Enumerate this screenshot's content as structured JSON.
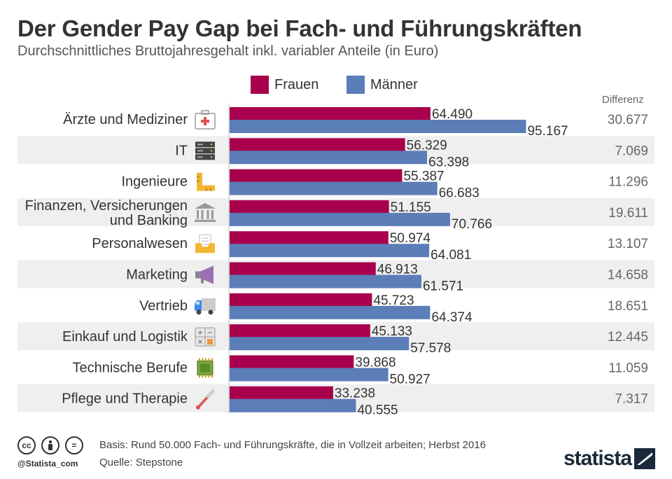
{
  "header": {
    "title": "Der Gender Pay Gap bei Fach- und Führungskräften",
    "subtitle": "Durchschnittliches Bruttojahresgehalt inkl. variabler Anteile (in Euro)"
  },
  "legend": {
    "frauen": "Frauen",
    "maenner": "Männer"
  },
  "colors": {
    "frauen": "#a8004c",
    "maenner": "#5b7db8",
    "row_band": "#efefef"
  },
  "diff_header": "Differenz",
  "chart_data": {
    "type": "bar",
    "orientation": "horizontal",
    "categories": [
      "Ärzte und Mediziner",
      "IT",
      "Ingenieure",
      "Finanzen, Versicherungen und Banking",
      "Personalwesen",
      "Marketing",
      "Vertrieb",
      "Einkauf und Logistik",
      "Technische Berufe",
      "Pflege und Therapie"
    ],
    "category_lines": [
      [
        "Ärzte und Mediziner"
      ],
      [
        "IT"
      ],
      [
        "Ingenieure"
      ],
      [
        "Finanzen, Versicherungen",
        "und Banking"
      ],
      [
        "Personalwesen"
      ],
      [
        "Marketing"
      ],
      [
        "Vertrieb"
      ],
      [
        "Einkauf und Logistik"
      ],
      [
        "Technische Berufe"
      ],
      [
        "Pflege und Therapie"
      ]
    ],
    "icons": [
      "medical-kit-icon",
      "server-icon",
      "ruler-icon",
      "bank-icon",
      "inbox-tray-icon",
      "megaphone-icon",
      "truck-icon",
      "calculator-icon",
      "microchip-icon",
      "thermometer-icon"
    ],
    "series": [
      {
        "name": "Frauen",
        "values": [
          64490,
          56329,
          55387,
          51155,
          50974,
          46913,
          45723,
          45133,
          39868,
          33238
        ],
        "labels": [
          "64.490",
          "56.329",
          "55.387",
          "51.155",
          "50.974",
          "46.913",
          "45.723",
          "45.133",
          "39.868",
          "33.238"
        ]
      },
      {
        "name": "Männer",
        "values": [
          95167,
          63398,
          66683,
          70766,
          64081,
          61571,
          64374,
          57578,
          50927,
          40555
        ],
        "labels": [
          "95.167",
          "63.398",
          "66.683",
          "70.766",
          "64.081",
          "61.571",
          "64.374",
          "57.578",
          "50.927",
          "40.555"
        ]
      }
    ],
    "differenz": {
      "values": [
        30677,
        7069,
        11296,
        19611,
        13107,
        14658,
        18651,
        12445,
        11059,
        7317
      ],
      "labels": [
        "30.677",
        "7.069",
        "11.296",
        "19.611",
        "13.107",
        "14.658",
        "18.651",
        "12.445",
        "11.059",
        "7.317"
      ]
    },
    "xlim": [
      0,
      100000
    ],
    "grid": false,
    "legend_position": "top-center"
  },
  "footer": {
    "basis": "Basis: Rund 50.000 Fach- und Führungskräfte, die in Vollzeit arbeiten; Herbst 2016",
    "quelle": "Quelle: Stepstone",
    "handle": "@Statista_com",
    "cc_icons": [
      "cc-icon",
      "by-icon",
      "nd-icon"
    ],
    "logo": "statista"
  }
}
